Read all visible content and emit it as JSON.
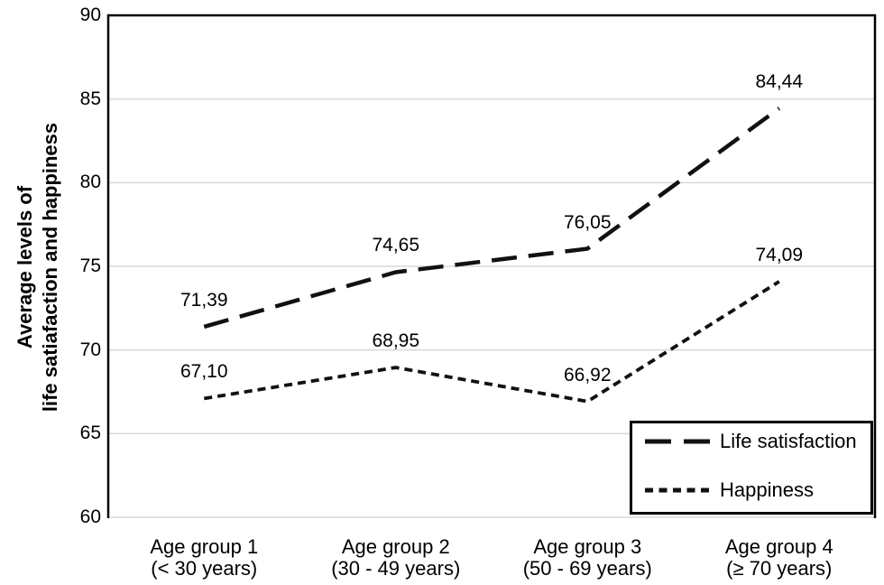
{
  "chart_data": {
    "type": "line",
    "title": "",
    "xlabel": "",
    "ylabel_lines": [
      "Average levels of",
      "life satiafaction and happiness"
    ],
    "ylim": [
      60,
      90
    ],
    "yticks": [
      60,
      65,
      70,
      75,
      80,
      85,
      90
    ],
    "grid": "horizontal",
    "legend_position": "inside-bottom-right",
    "categories": [
      {
        "line1": "Age group 1",
        "line2": "(< 30 years)"
      },
      {
        "line1": "Age group 2",
        "line2": "(30 - 49 years)"
      },
      {
        "line1": "Age group 3",
        "line2": "(50 - 69 years)"
      },
      {
        "line1": "Age group 4",
        "line2": "(≥ 70 years)"
      }
    ],
    "series": [
      {
        "name": "Life satisfaction",
        "line_style": "long-dash",
        "color": "#111111",
        "values": [
          71.39,
          74.65,
          76.05,
          84.44
        ],
        "labels": [
          "71,39",
          "74,65",
          "76,05",
          "84,44"
        ]
      },
      {
        "name": "Happiness",
        "line_style": "short-dash",
        "color": "#111111",
        "values": [
          67.1,
          68.95,
          66.92,
          74.09
        ],
        "labels": [
          "67,10",
          "68,95",
          "66,92",
          "74,09"
        ]
      }
    ],
    "colors": {
      "background": "#ffffff",
      "axis_frame": "#000000",
      "gridline": "#d9d9d9",
      "text": "#000000"
    }
  }
}
